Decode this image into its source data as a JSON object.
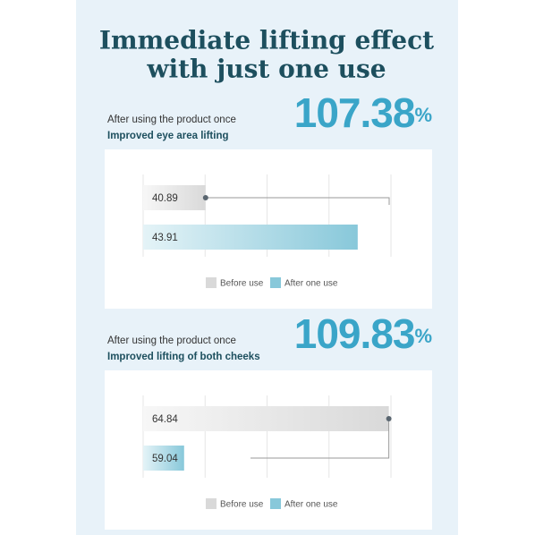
{
  "header": {
    "title_lines": [
      "Immediate lifting effect",
      "with just one use"
    ]
  },
  "chart_data": [
    {
      "type": "bar",
      "orientation": "horizontal",
      "subtitle": "After using the product once",
      "title": "Improved eye area lifting",
      "highlight": 107.38,
      "highlight_unit": "%",
      "series": [
        {
          "name": "Before use",
          "color": "#d9d9d9",
          "values": [
            40.89
          ]
        },
        {
          "name": "After one use",
          "color": "#88c8da",
          "values": [
            43.91
          ]
        }
      ],
      "xlim": [
        39.65,
        44.57
      ],
      "grid": true
    },
    {
      "type": "bar",
      "orientation": "horizontal",
      "subtitle": "After using the product once",
      "title": "Improved lifting of both cheeks",
      "highlight": 109.83,
      "highlight_unit": "%",
      "series": [
        {
          "name": "Before use",
          "color": "#d9d9d9",
          "values": [
            64.84
          ]
        },
        {
          "name": "After one use",
          "color": "#88c8da",
          "values": [
            59.04
          ]
        }
      ],
      "xlim": [
        57.88,
        64.9
      ],
      "grid": true
    }
  ]
}
